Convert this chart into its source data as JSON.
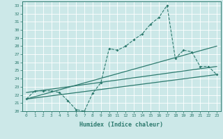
{
  "xlabel": "Humidex (Indice chaleur)",
  "bg_color": "#cce8e8",
  "grid_color": "#add8d8",
  "line_color": "#2d7a6e",
  "xlim": [
    -0.5,
    23.5
  ],
  "ylim": [
    20,
    33.5
  ],
  "xticks": [
    0,
    1,
    2,
    3,
    4,
    5,
    6,
    7,
    8,
    9,
    10,
    11,
    12,
    13,
    14,
    15,
    16,
    17,
    18,
    19,
    20,
    21,
    22,
    23
  ],
  "yticks": [
    20,
    21,
    22,
    23,
    24,
    25,
    26,
    27,
    28,
    29,
    30,
    31,
    32,
    33
  ],
  "series1_x": [
    0,
    1,
    2,
    3,
    4,
    5,
    6,
    7,
    8,
    9,
    10,
    11,
    12,
    13,
    14,
    15,
    16,
    17,
    18,
    19,
    20,
    21,
    22,
    23
  ],
  "series1_y": [
    21.5,
    22.5,
    22.5,
    22.5,
    22.3,
    21.3,
    20.2,
    20.0,
    22.2,
    23.5,
    27.7,
    27.5,
    28.0,
    28.8,
    29.5,
    30.7,
    31.5,
    33.0,
    26.5,
    27.5,
    27.3,
    25.5,
    25.5,
    24.5
  ],
  "series2_x": [
    0,
    23
  ],
  "series2_y": [
    21.5,
    28.0
  ],
  "series3_x": [
    0,
    23
  ],
  "series3_y": [
    22.3,
    25.5
  ],
  "series4_x": [
    0,
    23
  ],
  "series4_y": [
    21.5,
    24.5
  ]
}
